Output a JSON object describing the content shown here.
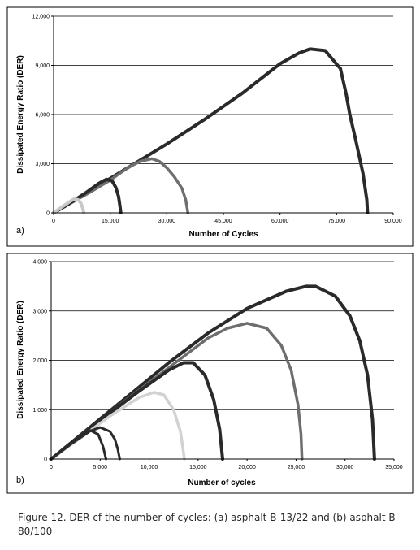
{
  "chart_data": [
    {
      "type": "line",
      "panel_label": "a)",
      "xlabel": "Number of Cycles",
      "ylabel": "Dissipated Energy Ratio (DER)",
      "xlim": [
        0,
        90000
      ],
      "ylim": [
        0,
        12000
      ],
      "x_ticks": [
        0,
        15000,
        30000,
        45000,
        60000,
        75000,
        90000
      ],
      "x_tick_labels": [
        "0",
        "15,000",
        "30,000",
        "45,000",
        "60,000",
        "75,000",
        "90,000"
      ],
      "y_ticks": [
        0,
        3000,
        6000,
        9000,
        12000
      ],
      "y_tick_labels": [
        "0",
        "3,000",
        "6,000",
        "9,000",
        "12,000"
      ],
      "grid": "horizontal",
      "series": [
        {
          "color": "#2a2a2a",
          "x": [
            0,
            10000,
            20000,
            30000,
            40000,
            50000,
            60000,
            65000,
            68000,
            72000,
            76000,
            77500,
            78500,
            80000,
            82000,
            83000,
            83200
          ],
          "y": [
            0,
            1400,
            2800,
            4200,
            5700,
            7300,
            9100,
            9750,
            10000,
            9900,
            8800,
            7300,
            6000,
            4500,
            2400,
            800,
            0
          ]
        },
        {
          "color": "#6e6e6e",
          "x": [
            0,
            5000,
            10000,
            15000,
            20000,
            23000,
            26000,
            28000,
            30000,
            32000,
            34000,
            35000,
            35600
          ],
          "y": [
            0,
            650,
            1300,
            2000,
            2800,
            3150,
            3300,
            3150,
            2750,
            2200,
            1500,
            800,
            0
          ]
        },
        {
          "color": "#2a2a2a",
          "x": [
            0,
            3000,
            6000,
            9000,
            12000,
            14000,
            15500,
            16500,
            17200,
            17600,
            17800
          ],
          "y": [
            0,
            400,
            850,
            1300,
            1800,
            2050,
            1950,
            1550,
            1000,
            400,
            0
          ]
        },
        {
          "color": "#c8c8c8",
          "x": [
            0,
            1500,
            3000,
            4500,
            5500,
            6500,
            7200,
            7700,
            8000
          ],
          "y": [
            0,
            250,
            480,
            720,
            850,
            800,
            600,
            300,
            0
          ]
        }
      ]
    },
    {
      "type": "line",
      "panel_label": "b)",
      "xlabel": "Number of cycles",
      "ylabel": "Dissipated Energy Ratio (DER)",
      "xlim": [
        0,
        35000
      ],
      "ylim": [
        0,
        4000
      ],
      "x_ticks": [
        0,
        5000,
        10000,
        15000,
        20000,
        25000,
        30000,
        35000
      ],
      "x_tick_labels": [
        "0",
        "5,000",
        "10,000",
        "15,000",
        "20,000",
        "25,000",
        "30,000",
        "35,000"
      ],
      "y_ticks": [
        0,
        1000,
        2000,
        3000,
        4000
      ],
      "y_tick_labels": [
        "0",
        "1,000",
        "2,000",
        "3,000",
        "4,000"
      ],
      "grid": "horizontal",
      "series": [
        {
          "color": "#2a2a2a",
          "x": [
            0,
            4000,
            8000,
            12000,
            16000,
            20000,
            24000,
            26000,
            27000,
            29000,
            30500,
            31500,
            32300,
            32800,
            33000
          ],
          "y": [
            0,
            650,
            1300,
            1950,
            2550,
            3050,
            3400,
            3500,
            3500,
            3300,
            2900,
            2400,
            1700,
            800,
            0
          ]
        },
        {
          "color": "#6e6e6e",
          "x": [
            0,
            4000,
            8000,
            12000,
            16000,
            18000,
            20000,
            22000,
            23500,
            24500,
            25200,
            25500,
            25600
          ],
          "y": [
            0,
            620,
            1250,
            1850,
            2450,
            2650,
            2750,
            2650,
            2300,
            1800,
            1100,
            500,
            0
          ]
        },
        {
          "color": "#2a2a2a",
          "x": [
            0,
            3000,
            6000,
            9000,
            12000,
            13500,
            14500,
            15700,
            16600,
            17200,
            17500
          ],
          "y": [
            0,
            460,
            930,
            1380,
            1800,
            1950,
            1950,
            1700,
            1200,
            600,
            0
          ]
        },
        {
          "color": "#d2d2d2",
          "x": [
            0,
            3000,
            6000,
            9000,
            10500,
            11500,
            12500,
            13200,
            13600
          ],
          "y": [
            0,
            430,
            870,
            1250,
            1350,
            1300,
            1000,
            550,
            0
          ]
        },
        {
          "color": "#2a2a2a",
          "x": [
            0,
            2000,
            4000,
            5000,
            6000,
            6500,
            6800,
            7000
          ],
          "y": [
            0,
            300,
            570,
            640,
            560,
            400,
            200,
            0
          ]
        },
        {
          "color": "#2a2a2a",
          "x": [
            0,
            1500,
            3000,
            4000,
            4800,
            5300,
            5600
          ],
          "y": [
            0,
            250,
            480,
            580,
            500,
            250,
            0
          ]
        }
      ]
    }
  ],
  "caption": "Figure 12. DER cf the number of cycles: (a) asphalt B-13/22 and (b) asphalt B-80/100"
}
